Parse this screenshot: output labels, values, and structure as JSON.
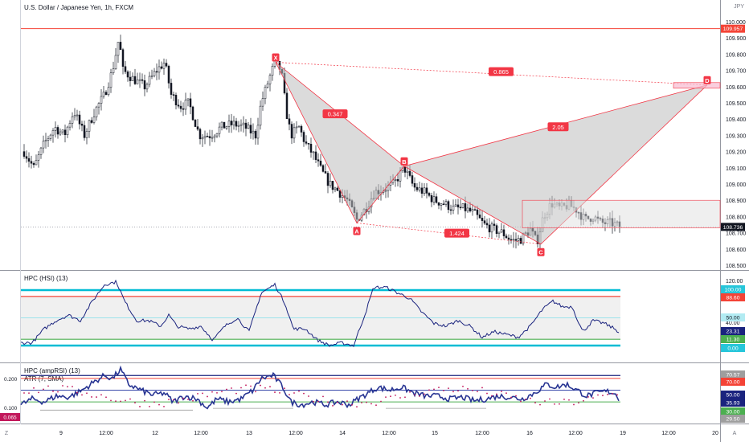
{
  "header": {
    "title": "U.S. Dollar / Japanese Yen, 1h, FXCM",
    "currency": "JPY"
  },
  "colors": {
    "bull": "#26a69a",
    "bear": "#ef5350",
    "pattern_fill": "#bdbdbd",
    "pattern_line": "#f23645",
    "indicator": "#1a237e",
    "band_top": "#00bcd4",
    "level_red": "#f44336",
    "level_green": "#4caf50",
    "atr": "#c2185b"
  },
  "main_pane": {
    "y_ticks": [
      "110.000",
      "109.900",
      "109.800",
      "109.700",
      "109.600",
      "109.500",
      "109.400",
      "109.300",
      "109.200",
      "109.100",
      "109.000",
      "108.900",
      "108.800",
      "108.700",
      "108.600",
      "108.500"
    ],
    "badges": [
      {
        "label": "109.957",
        "kind": "resistance"
      },
      {
        "label": "108.736",
        "kind": "last"
      }
    ],
    "pattern": {
      "points": [
        {
          "label": "X",
          "price": 109.75
        },
        {
          "label": "A",
          "price": 108.76
        },
        {
          "label": "B",
          "price": 109.11
        },
        {
          "label": "C",
          "price": 108.63
        },
        {
          "label": "D",
          "price": 109.61
        }
      ],
      "ratios": [
        {
          "label": "0.347"
        },
        {
          "label": "0.865"
        },
        {
          "label": "2.05"
        },
        {
          "label": "1.424"
        }
      ]
    }
  },
  "hsi_pane": {
    "title": "HPC (HSI) (13)",
    "y_ticks": [
      "120.00",
      "40.00"
    ],
    "badges": [
      {
        "label": "100.00",
        "kind": "cyan"
      },
      {
        "label": "88.60",
        "kind": "red"
      },
      {
        "label": "50.00",
        "kind": "cyan-light"
      },
      {
        "label": "23.31",
        "kind": "navy"
      },
      {
        "label": "11.30",
        "kind": "green"
      },
      {
        "label": "0.00",
        "kind": "cyan"
      }
    ]
  },
  "rsi_pane": {
    "title": "HPC (ampRSI) (13)",
    "subtitle": "ATR (7, SMA)",
    "left_ticks": [
      "0.200",
      "0.100"
    ],
    "left_badge": "0.065",
    "badges": [
      {
        "label": "70.57",
        "kind": "gray"
      },
      {
        "label": "70.00",
        "kind": "red"
      },
      {
        "label": "50.00",
        "kind": "navy"
      },
      {
        "label": "35.93",
        "kind": "navy"
      },
      {
        "label": "30.00",
        "kind": "green"
      },
      {
        "label": "29.50",
        "kind": "gray"
      }
    ]
  },
  "time_axis": {
    "labels": [
      "9",
      "12:00",
      "12",
      "12:00",
      "13",
      "12:00",
      "14",
      "12:00",
      "15",
      "12:00",
      "16",
      "12:00",
      "19",
      "12:00",
      "20"
    ],
    "left_corner": "Z",
    "right_corner": "A"
  }
}
